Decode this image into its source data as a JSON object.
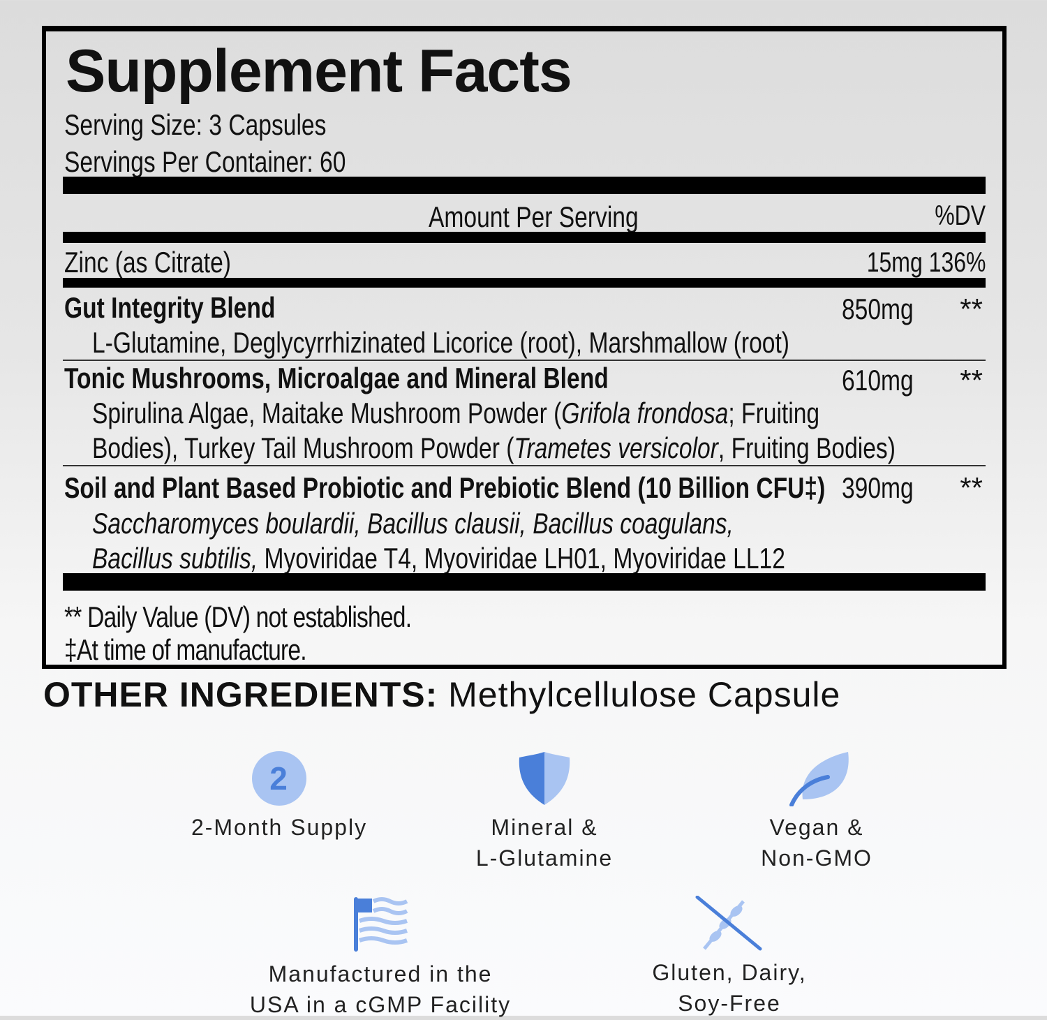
{
  "facts": {
    "title": "Supplement Facts",
    "serving_size": "Serving Size: 3 Capsules",
    "servings_per_container": "Servings Per Container: 60",
    "amount_header": "Amount Per Serving",
    "dv_header": "%DV",
    "zinc": {
      "name": "Zinc (as Citrate)",
      "amount": "15mg",
      "dv": "136%"
    },
    "blends": [
      {
        "name": "Gut Integrity Blend",
        "amount": "850mg",
        "dv": "**",
        "lines": [
          [
            {
              "t": "L-Glutamine, Deglycyrrhizinated Licorice (root), Marshmallow (root)",
              "i": false
            }
          ]
        ]
      },
      {
        "name": "Tonic Mushrooms, Microalgae and Mineral Blend",
        "amount": "610mg",
        "dv": "**",
        "lines": [
          [
            {
              "t": "Spirulina Algae, Maitake Mushroom Powder (",
              "i": false
            },
            {
              "t": "Grifola frondosa",
              "i": true
            },
            {
              "t": "; Fruiting",
              "i": false
            }
          ],
          [
            {
              "t": "Bodies), Turkey Tail Mushroom Powder (",
              "i": false
            },
            {
              "t": "Trametes versicolor",
              "i": true
            },
            {
              "t": ", Fruiting Bodies)",
              "i": false
            }
          ]
        ]
      },
      {
        "name": "Soil and Plant Based Probiotic and Prebiotic Blend (10 Billion CFU‡)",
        "amount": "390mg",
        "dv": "**",
        "lines": [
          [
            {
              "t": "Saccharomyces boulardii, Bacillus clausii, Bacillus coagulans,",
              "i": true
            }
          ],
          [
            {
              "t": "Bacillus subtilis,",
              "i": true
            },
            {
              "t": " Myoviridae T4, Myoviridae LH01, Myoviridae LL12",
              "i": false
            }
          ]
        ]
      }
    ],
    "footnote_dv": "** Daily Value (DV) not established.",
    "footnote_mfg": "‡At time of manufacture."
  },
  "other_ingredients": {
    "label": "OTHER INGREDIENTS:",
    "value": " Methylcellulose Capsule"
  },
  "badges": [
    {
      "icon": "number-2-circle-icon",
      "number": "2",
      "lines": [
        "2-Month Supply"
      ]
    },
    {
      "icon": "shield-icon",
      "lines": [
        "Mineral &",
        "L-Glutamine"
      ]
    },
    {
      "icon": "leaf-icon",
      "lines": [
        "Vegan &",
        "Non-GMO"
      ]
    },
    {
      "icon": "usa-flag-icon",
      "lines": [
        "Manufactured in the",
        "USA in a cGMP Facility"
      ]
    },
    {
      "icon": "no-wheat-icon",
      "lines": [
        "Gluten, Dairy,",
        "Soy-Free"
      ]
    }
  ],
  "colors": {
    "icon_dark": "#4a7fd9",
    "icon_light": "#a9c4f2"
  }
}
